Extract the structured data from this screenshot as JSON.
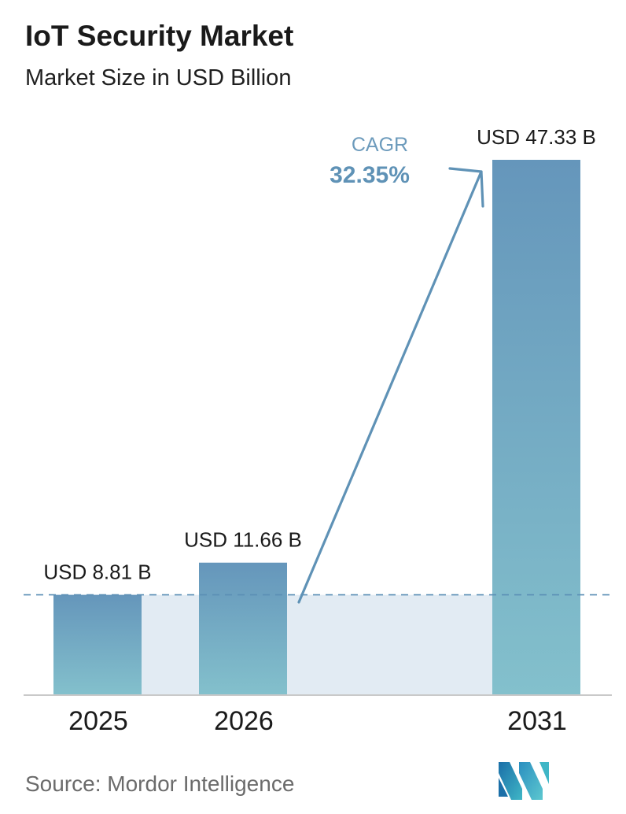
{
  "header": {
    "title": "IoT Security Market",
    "subtitle": "Market Size in USD Billion"
  },
  "chart_data": {
    "type": "bar",
    "title": "IoT Security Market",
    "subtitle": "Market Size in USD Billion",
    "xlabel": "",
    "ylabel": "",
    "categories": [
      "2025",
      "2026",
      "2031"
    ],
    "values": [
      8.81,
      11.66,
      47.33
    ],
    "data_labels": [
      "USD 8.81 B",
      "USD 11.66 B",
      "USD 47.33 B"
    ],
    "ylim": [
      0,
      47.33
    ],
    "grid": false,
    "legend": "none",
    "annotations": {
      "cagr_label": "CAGR",
      "cagr_value": "32.35%"
    }
  },
  "footer": {
    "source": "Source:  Mordor Intelligence"
  },
  "colors": {
    "bar_top": "#6596bb",
    "bar_bottom": "#83c0cc",
    "shade": "#e2ebf3",
    "accent": "#5f92b6",
    "baseline_dash": "#5b8fb5",
    "axis": "#c9c9c9"
  },
  "logo": {
    "icon": "mordor-intelligence-logo-icon"
  }
}
